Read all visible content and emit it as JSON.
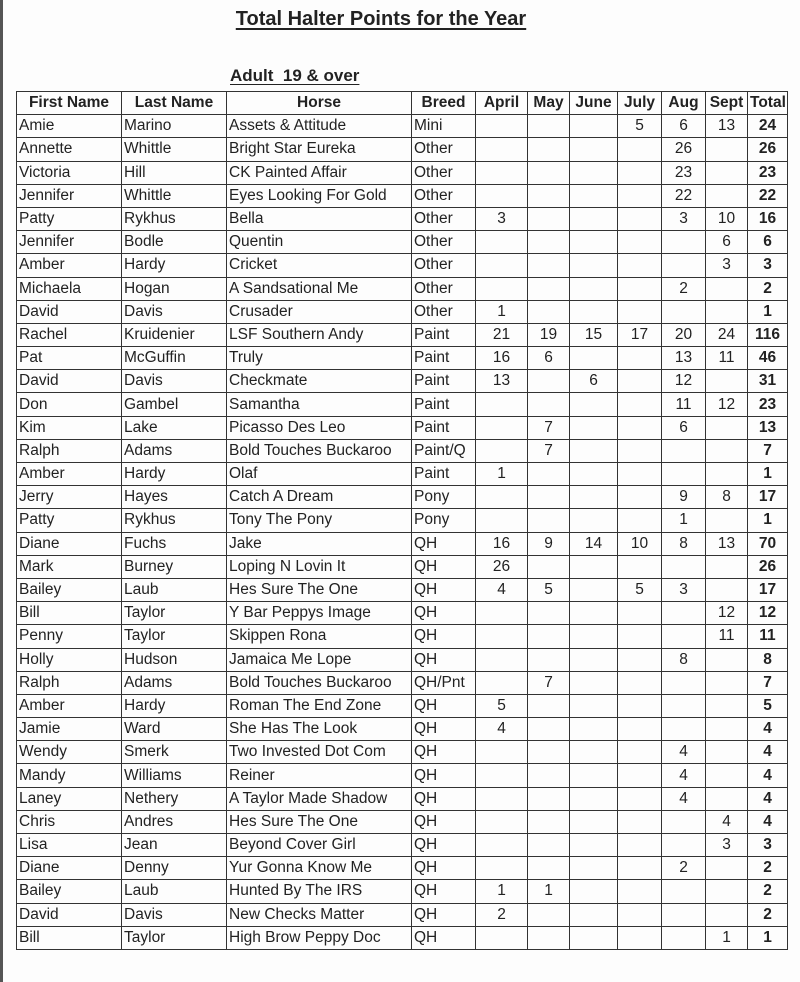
{
  "title": "Total Halter Points for the Year",
  "subtitle": "Adult  19 & over",
  "columns": [
    "First Name",
    "Last Name",
    "Horse",
    "Breed",
    "April",
    "May",
    "June",
    "July",
    "Aug",
    "Sept",
    "Total"
  ],
  "rows": [
    [
      "Amie",
      "Marino",
      "Assets & Attitude",
      "Mini",
      "",
      "",
      "",
      "5",
      "6",
      "13",
      "24"
    ],
    [
      "Annette",
      "Whittle",
      "Bright Star Eureka",
      "Other",
      "",
      "",
      "",
      "",
      "26",
      "",
      "26"
    ],
    [
      "Victoria",
      "Hill",
      "CK Painted Affair",
      "Other",
      "",
      "",
      "",
      "",
      "23",
      "",
      "23"
    ],
    [
      "Jennifer",
      "Whittle",
      "Eyes Looking For Gold",
      "Other",
      "",
      "",
      "",
      "",
      "22",
      "",
      "22"
    ],
    [
      "Patty",
      "Rykhus",
      "Bella",
      "Other",
      "3",
      "",
      "",
      "",
      "3",
      "10",
      "16"
    ],
    [
      "Jennifer",
      "Bodle",
      "Quentin",
      "Other",
      "",
      "",
      "",
      "",
      "",
      "6",
      "6"
    ],
    [
      "Amber",
      "Hardy",
      "Cricket",
      "Other",
      "",
      "",
      "",
      "",
      "",
      "3",
      "3"
    ],
    [
      "Michaela",
      "Hogan",
      "A Sandsational Me",
      "Other",
      "",
      "",
      "",
      "",
      "2",
      "",
      "2"
    ],
    [
      "David",
      "Davis",
      "Crusader",
      "Other",
      "1",
      "",
      "",
      "",
      "",
      "",
      "1"
    ],
    [
      "Rachel",
      "Kruidenier",
      "LSF Southern Andy",
      "Paint",
      "21",
      "19",
      "15",
      "17",
      "20",
      "24",
      "116"
    ],
    [
      "Pat",
      "McGuffin",
      "Truly",
      "Paint",
      "16",
      "6",
      "",
      "",
      "13",
      "11",
      "46"
    ],
    [
      "David",
      "Davis",
      "Checkmate",
      "Paint",
      "13",
      "",
      "6",
      "",
      "12",
      "",
      "31"
    ],
    [
      "Don",
      "Gambel",
      "Samantha",
      "Paint",
      "",
      "",
      "",
      "",
      "11",
      "12",
      "23"
    ],
    [
      "Kim",
      "Lake",
      "Picasso Des Leo",
      "Paint",
      "",
      "7",
      "",
      "",
      "6",
      "",
      "13"
    ],
    [
      "Ralph",
      "Adams",
      "Bold Touches Buckaroo",
      "Paint/Q",
      "",
      "7",
      "",
      "",
      "",
      "",
      "7"
    ],
    [
      "Amber",
      "Hardy",
      "Olaf",
      "Paint",
      "1",
      "",
      "",
      "",
      "",
      "",
      "1"
    ],
    [
      "Jerry",
      "Hayes",
      "Catch A Dream",
      "Pony",
      "",
      "",
      "",
      "",
      "9",
      "8",
      "17"
    ],
    [
      "Patty",
      "Rykhus",
      "Tony The Pony",
      "Pony",
      "",
      "",
      "",
      "",
      "1",
      "",
      "1"
    ],
    [
      "Diane",
      "Fuchs",
      "Jake",
      "QH",
      "16",
      "9",
      "14",
      "10",
      "8",
      "13",
      "70"
    ],
    [
      "Mark",
      "Burney",
      "Loping N Lovin It",
      "QH",
      "26",
      "",
      "",
      "",
      "",
      "",
      "26"
    ],
    [
      "Bailey",
      "Laub",
      "Hes Sure The One",
      "QH",
      "4",
      "5",
      "",
      "5",
      "3",
      "",
      "17"
    ],
    [
      "Bill",
      "Taylor",
      "Y Bar Peppys Image",
      "QH",
      "",
      "",
      "",
      "",
      "",
      "12",
      "12"
    ],
    [
      "Penny",
      "Taylor",
      "Skippen Rona",
      "QH",
      "",
      "",
      "",
      "",
      "",
      "11",
      "11"
    ],
    [
      "Holly",
      "Hudson",
      "Jamaica Me Lope",
      "QH",
      "",
      "",
      "",
      "",
      "8",
      "",
      "8"
    ],
    [
      "Ralph",
      "Adams",
      "Bold Touches Buckaroo",
      "QH/Pnt",
      "",
      "7",
      "",
      "",
      "",
      "",
      "7"
    ],
    [
      "Amber",
      "Hardy",
      "Roman The End Zone",
      "QH",
      "5",
      "",
      "",
      "",
      "",
      "",
      "5"
    ],
    [
      "Jamie",
      "Ward",
      "She Has The Look",
      "QH",
      "4",
      "",
      "",
      "",
      "",
      "",
      "4"
    ],
    [
      "Wendy",
      "Smerk",
      "Two Invested Dot Com",
      "QH",
      "",
      "",
      "",
      "",
      "4",
      "",
      "4"
    ],
    [
      "Mandy",
      "Williams",
      "Reiner",
      "QH",
      "",
      "",
      "",
      "",
      "4",
      "",
      "4"
    ],
    [
      "Laney",
      "Nethery",
      "A Taylor Made Shadow",
      "QH",
      "",
      "",
      "",
      "",
      "4",
      "",
      "4"
    ],
    [
      "Chris",
      "Andres",
      "Hes Sure The One",
      "QH",
      "",
      "",
      "",
      "",
      "",
      "4",
      "4"
    ],
    [
      "Lisa",
      "Jean",
      "Beyond Cover Girl",
      "QH",
      "",
      "",
      "",
      "",
      "",
      "3",
      "3"
    ],
    [
      "Diane",
      "Denny",
      "Yur Gonna Know Me",
      "QH",
      "",
      "",
      "",
      "",
      "2",
      "",
      "2"
    ],
    [
      "Bailey",
      "Laub",
      "Hunted By The IRS",
      "QH",
      "1",
      "1",
      "",
      "",
      "",
      "",
      "2"
    ],
    [
      "David",
      "Davis",
      "New Checks Matter",
      "QH",
      "2",
      "",
      "",
      "",
      "",
      "",
      "2"
    ],
    [
      "Bill",
      "Taylor",
      "High Brow Peppy Doc",
      "QH",
      "",
      "",
      "",
      "",
      "",
      "1",
      "1"
    ]
  ]
}
